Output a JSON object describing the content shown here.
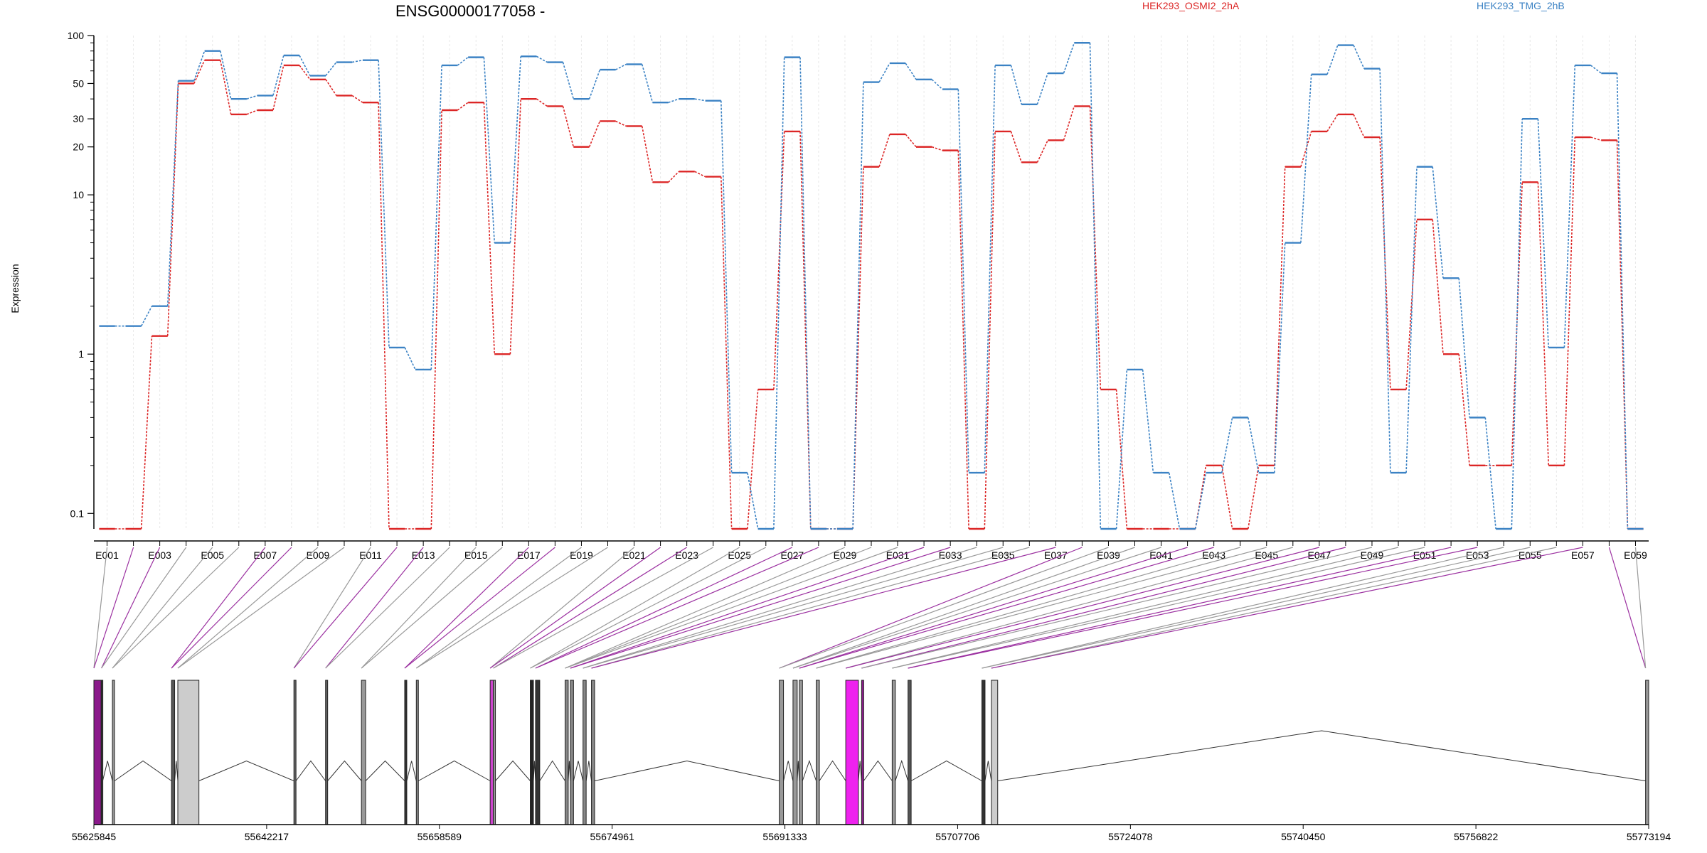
{
  "chart_data": {
    "type": "line",
    "title": "ENSG00000177058 -",
    "ylabel": "Expression",
    "yscale": "log",
    "ylim": [
      0.08,
      100
    ],
    "yticks": [
      0.1,
      1,
      10,
      20,
      30,
      50,
      100
    ],
    "ytick_labels": [
      "0.1",
      "1",
      "10",
      "20",
      "30",
      "50",
      "100"
    ],
    "categories": [
      "E001",
      "E002",
      "E003",
      "E004",
      "E005",
      "E006",
      "E007",
      "E008",
      "E009",
      "E010",
      "E011",
      "E012",
      "E013",
      "E014",
      "E015",
      "E016",
      "E017",
      "E018",
      "E019",
      "E020",
      "E021",
      "E022",
      "E023",
      "E024",
      "E025",
      "E026",
      "E027",
      "E028",
      "E029",
      "E030",
      "E031",
      "E032",
      "E033",
      "E034",
      "E035",
      "E036",
      "E037",
      "E038",
      "E039",
      "E040",
      "E041",
      "E042",
      "E043",
      "E044",
      "E045",
      "E046",
      "E047",
      "E048",
      "E049",
      "E050",
      "E051",
      "E052",
      "E053",
      "E054",
      "E055",
      "E056",
      "E057",
      "E058",
      "E059"
    ],
    "xtick_labels": [
      "E001",
      "E003",
      "E005",
      "E007",
      "E009",
      "E011",
      "E013",
      "E015",
      "E017",
      "E019",
      "E021",
      "E023",
      "E025",
      "E027",
      "E029",
      "E031",
      "E033",
      "E035",
      "E037",
      "E039",
      "E041",
      "E043",
      "E045",
      "E047",
      "E049",
      "E051",
      "E053",
      "E055",
      "E057",
      "E059"
    ],
    "series": [
      {
        "name": "HEK293_OSMI2_2hA",
        "color": "#dc2626",
        "values": [
          0.08,
          0.08,
          1.3,
          50,
          70,
          32,
          34,
          65,
          53,
          42,
          38,
          0.08,
          0.08,
          34,
          38,
          1,
          40,
          36,
          20,
          29,
          27,
          12,
          14,
          13,
          0.08,
          0.6,
          25,
          0.08,
          0.08,
          15,
          24,
          20,
          19,
          0.08,
          25,
          16,
          22,
          36,
          0.6,
          0.08,
          0.08,
          0.08,
          0.2,
          0.08,
          0.2,
          15,
          25,
          32,
          23,
          0.6,
          7,
          1,
          0.2,
          0.2,
          12,
          0.2,
          23,
          22,
          0.08
        ]
      },
      {
        "name": "HEK293_TMG_2hB",
        "color": "#3b82c4",
        "values": [
          1.5,
          1.5,
          2,
          52,
          80,
          40,
          42,
          75,
          56,
          68,
          70,
          1.1,
          0.8,
          65,
          73,
          5,
          74,
          68,
          40,
          61,
          66,
          38,
          40,
          39,
          0.18,
          0.08,
          73,
          0.08,
          0.08,
          51,
          67,
          53,
          46,
          0.18,
          65,
          37,
          58,
          90,
          0.08,
          0.8,
          0.18,
          0.08,
          0.18,
          0.4,
          0.18,
          5,
          57,
          87,
          62,
          0.18,
          15,
          3,
          0.4,
          0.08,
          30,
          1.1,
          65,
          58,
          0.08
        ]
      }
    ],
    "genomic_axis": {
      "tick_labels": [
        "55625845",
        "55642217",
        "55658589",
        "55674961",
        "55691333",
        "55707706",
        "55724078",
        "55740450",
        "55756822",
        "55773194"
      ],
      "start": 55625845,
      "end": 55773194
    },
    "exon_map": {
      "exons": [
        {
          "s": 55625845,
          "e": 55626530,
          "c": "#8b1a8b"
        },
        {
          "s": 55626560,
          "e": 55626680,
          "c": "#444444"
        },
        {
          "s": 55627600,
          "e": 55627800,
          "c": "#999999"
        },
        {
          "s": 55633200,
          "e": 55633500,
          "c": "#555555"
        },
        {
          "s": 55633800,
          "e": 55635800,
          "c": "#cccccc"
        },
        {
          "s": 55644800,
          "e": 55645000,
          "c": "#666666"
        },
        {
          "s": 55647800,
          "e": 55648000,
          "c": "#666666"
        },
        {
          "s": 55651200,
          "e": 55651600,
          "c": "#999999"
        },
        {
          "s": 55655300,
          "e": 55655500,
          "c": "#333333"
        },
        {
          "s": 55656400,
          "e": 55656600,
          "c": "#888888"
        },
        {
          "s": 55663400,
          "e": 55663700,
          "c": "#cc44cc"
        },
        {
          "s": 55663700,
          "e": 55663900,
          "c": "#999999"
        },
        {
          "s": 55667200,
          "e": 55667500,
          "c": "#222222"
        },
        {
          "s": 55667700,
          "e": 55668100,
          "c": "#333333"
        },
        {
          "s": 55670500,
          "e": 55670800,
          "c": "#888888"
        },
        {
          "s": 55671000,
          "e": 55671300,
          "c": "#888888"
        },
        {
          "s": 55672200,
          "e": 55672500,
          "c": "#888888"
        },
        {
          "s": 55673000,
          "e": 55673300,
          "c": "#888888"
        },
        {
          "s": 55690800,
          "e": 55691200,
          "c": "#999999"
        },
        {
          "s": 55692100,
          "e": 55692500,
          "c": "#999999"
        },
        {
          "s": 55692700,
          "e": 55693000,
          "c": "#999999"
        },
        {
          "s": 55694300,
          "e": 55694600,
          "c": "#999999"
        },
        {
          "s": 55697100,
          "e": 55698300,
          "c": "#ee22ee"
        },
        {
          "s": 55698600,
          "e": 55698800,
          "c": "#8b1a8b"
        },
        {
          "s": 55701500,
          "e": 55701800,
          "c": "#999999"
        },
        {
          "s": 55703000,
          "e": 55703300,
          "c": "#555555"
        },
        {
          "s": 55710000,
          "e": 55710300,
          "c": "#333333"
        },
        {
          "s": 55710900,
          "e": 55711500,
          "c": "#cccccc"
        },
        {
          "s": 55772900,
          "e": 55773194,
          "c": "#999999"
        }
      ]
    }
  }
}
